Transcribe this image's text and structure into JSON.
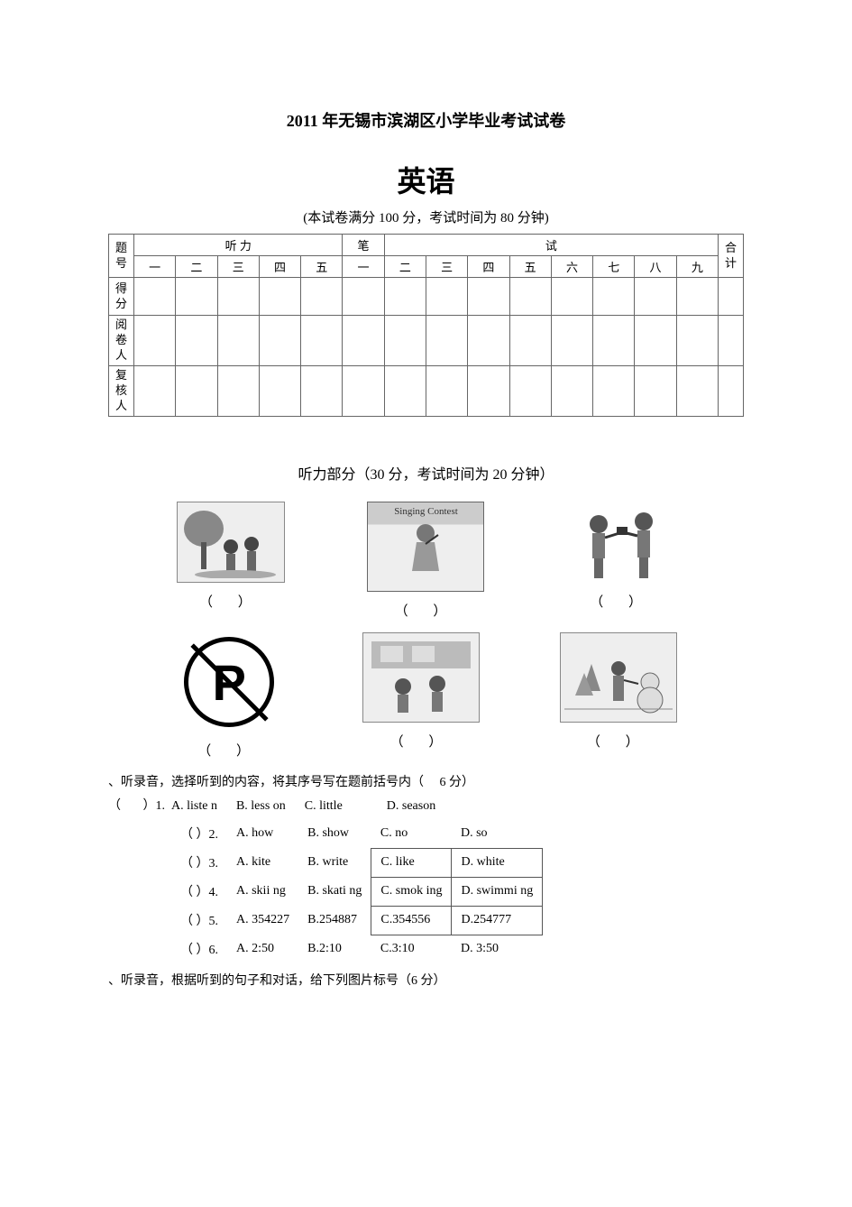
{
  "header": {
    "title": "2011 年无锡市滨湖区小学毕业考试试卷",
    "subject": "英语",
    "info": "(本试卷满分 100 分，考试时间为 80 分钟)"
  },
  "scoreTable": {
    "rowLabels": [
      "题号",
      "得分",
      "阅卷人",
      "复核人"
    ],
    "listening": "听    力",
    "written": "笔",
    "writtenTest": "试",
    "total": "合计",
    "cols1": [
      "一",
      "二",
      "三",
      "四",
      "五"
    ],
    "cols2": [
      "一",
      "二",
      "三",
      "四",
      "五",
      "六",
      "七",
      "八",
      "九"
    ]
  },
  "listeningSection": {
    "title": "听力部分（30 分，考试时间为 20 分钟）"
  },
  "images": {
    "bracket": "（    ）",
    "bracketNarrow": "（ ）",
    "contestBanner": "Singing Contest",
    "noParkLetter": "P"
  },
  "section2": {
    "intro": "、听录音，选择听到的内容，将其序号写在题前括号内（     6 分）",
    "q1": "（       ）1.  A. liste n      B. less on      C. little              D. season",
    "rows": [
      {
        "num": "（       ）2.",
        "a": "A. how",
        "b": "B. show",
        "c": "C. no",
        "d": "D. so",
        "box": false
      },
      {
        "num": "（       ）3.",
        "a": "A. kite",
        "b": "B. write",
        "c": "C. like",
        "d": "D. white",
        "box": true
      },
      {
        "num": "（       ）4.",
        "a": "A. skii ng",
        "b": "B. skati ng",
        "c": "C. smok ing",
        "d": "D. swimmi ng",
        "box": true
      },
      {
        "num": "（       ）5.",
        "a": "A. 354227",
        "b": "B.254887",
        "c": "C.354556",
        "d": "D.254777",
        "box": true
      },
      {
        "num": "（       ）6.",
        "a": "A. 2:50",
        "b": "B.2:10",
        "c": "C.3:10",
        "d": "D. 3:50",
        "box": false
      }
    ]
  },
  "section3": {
    "intro": "、听录音，根据听到的句子和对话，给下列图片标号（6 分）"
  }
}
